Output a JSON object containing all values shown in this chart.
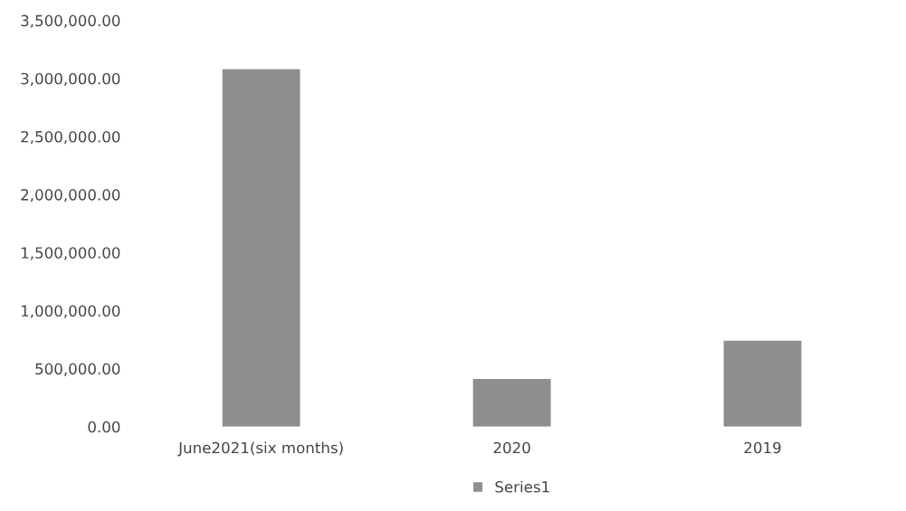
{
  "chart_data": {
    "type": "bar",
    "categories": [
      "June2021(six months)",
      "2020",
      "2019"
    ],
    "series": [
      {
        "name": "Series1",
        "color": "#8e8e90",
        "values": [
          3080000,
          412000,
          740000
        ]
      }
    ],
    "ylim": [
      0,
      3500000
    ],
    "yticks": [
      {
        "value": 0,
        "label": "0.00"
      },
      {
        "value": 500000,
        "label": "500,000.00"
      },
      {
        "value": 1000000,
        "label": "1,000,000.00"
      },
      {
        "value": 1500000,
        "label": "1,500,000.00"
      },
      {
        "value": 2000000,
        "label": "2,000,000.00"
      },
      {
        "value": 2500000,
        "label": "2,500,000.00"
      },
      {
        "value": 3000000,
        "label": "3,000,000.00"
      },
      {
        "value": 3500000,
        "label": "3,500,000.00"
      }
    ],
    "grid": false,
    "legend": "bottom"
  }
}
